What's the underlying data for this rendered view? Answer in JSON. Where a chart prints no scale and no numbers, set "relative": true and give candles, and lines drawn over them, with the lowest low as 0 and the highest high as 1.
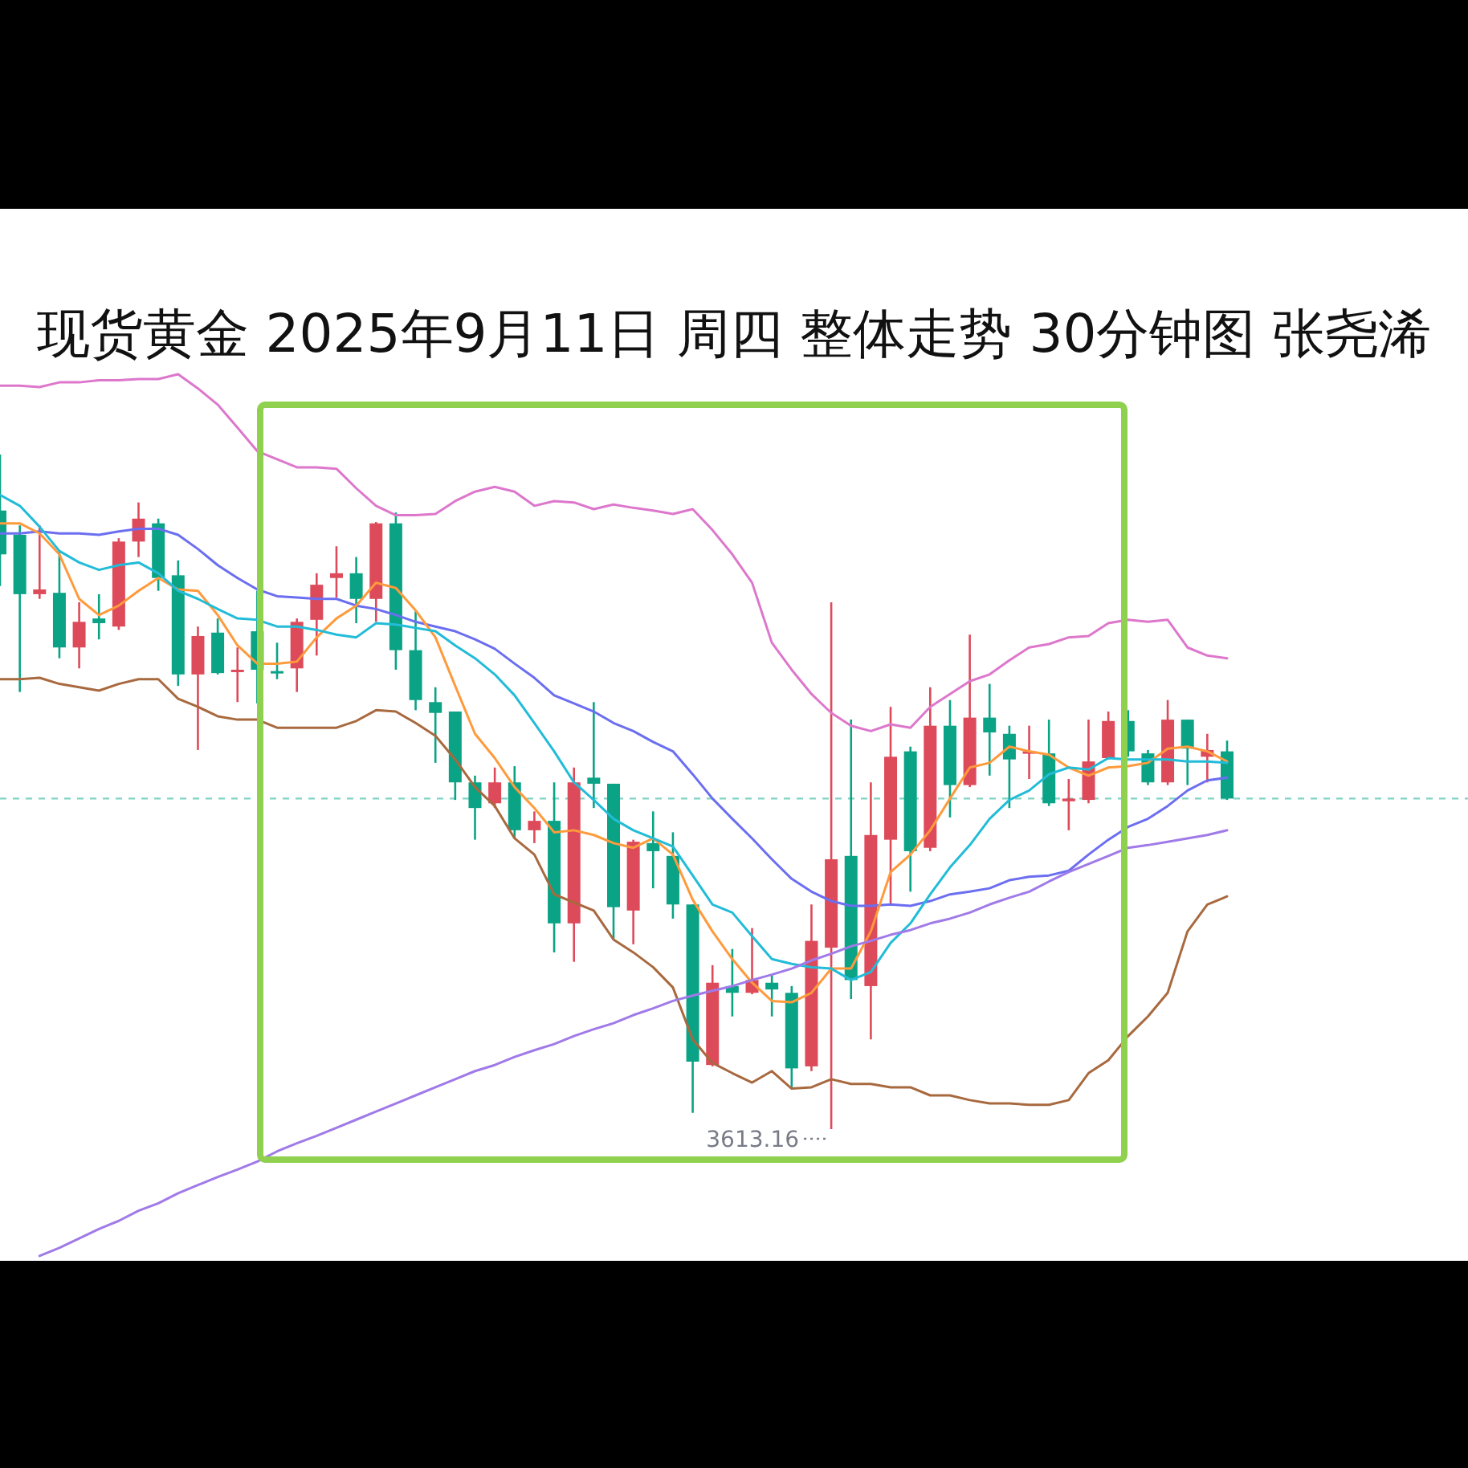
{
  "chart_data": {
    "type": "candlestick",
    "title": "现货黄金 2025年9月11日 周四 整体走势 30分钟图 张尧浠",
    "relative": true,
    "categories": [
      null,
      null,
      null,
      null,
      null,
      null,
      null,
      null,
      null,
      null,
      null,
      null,
      null,
      null,
      null,
      null,
      null,
      null,
      null,
      null,
      null,
      null,
      null,
      null,
      null,
      null,
      null,
      null,
      null,
      null,
      null,
      null,
      null,
      null,
      null,
      null,
      null,
      null,
      null,
      null,
      null,
      null,
      null,
      null,
      null,
      null,
      null,
      null,
      null,
      null,
      null,
      null,
      null,
      null,
      null,
      null,
      null,
      null,
      null,
      null,
      null,
      null,
      null
    ],
    "ohlc": [
      [
        0.852,
        1.0,
        0.805,
        0.917
      ],
      [
        0.793,
        0.895,
        0.648,
        0.881
      ],
      [
        0.8,
        0.895,
        0.786,
        0.793
      ],
      [
        0.714,
        0.857,
        0.698,
        0.795
      ],
      [
        0.752,
        0.781,
        0.683,
        0.714
      ],
      [
        0.75,
        0.793,
        0.726,
        0.757
      ],
      [
        0.871,
        0.876,
        0.74,
        0.745
      ],
      [
        0.905,
        0.929,
        0.848,
        0.871
      ],
      [
        0.817,
        0.905,
        0.798,
        0.898
      ],
      [
        0.674,
        0.843,
        0.657,
        0.821
      ],
      [
        0.731,
        0.745,
        0.562,
        0.674
      ],
      [
        0.676,
        0.757,
        0.674,
        0.736
      ],
      [
        0.681,
        0.714,
        0.633,
        0.679
      ],
      [
        0.681,
        0.798,
        0.631,
        0.738
      ],
      [
        0.676,
        0.721,
        0.667,
        0.679
      ],
      [
        0.752,
        0.757,
        0.648,
        0.683
      ],
      [
        0.807,
        0.824,
        0.702,
        0.755
      ],
      [
        0.824,
        0.864,
        0.788,
        0.817
      ],
      [
        0.786,
        0.848,
        0.75,
        0.824
      ],
      [
        0.898,
        0.9,
        0.752,
        0.786
      ],
      [
        0.71,
        0.914,
        0.681,
        0.898
      ],
      [
        0.636,
        0.769,
        0.621,
        0.71
      ],
      [
        0.617,
        0.655,
        0.543,
        0.633
      ],
      [
        0.514,
        0.619,
        0.488,
        0.619
      ],
      [
        0.476,
        0.524,
        0.429,
        0.514
      ],
      [
        0.514,
        0.536,
        0.476,
        0.483
      ],
      [
        0.443,
        0.538,
        0.431,
        0.514
      ],
      [
        0.457,
        0.471,
        0.424,
        0.443
      ],
      [
        0.305,
        0.514,
        0.262,
        0.457
      ],
      [
        0.514,
        0.536,
        0.248,
        0.305
      ],
      [
        0.512,
        0.633,
        0.476,
        0.521
      ],
      [
        0.329,
        0.512,
        0.281,
        0.512
      ],
      [
        0.426,
        0.429,
        0.274,
        0.324
      ],
      [
        0.412,
        0.471,
        0.357,
        0.424
      ],
      [
        0.333,
        0.44,
        0.312,
        0.405
      ],
      [
        0.1,
        0.333,
        0.024,
        0.333
      ],
      [
        0.217,
        0.243,
        0.093,
        0.095
      ],
      [
        0.202,
        0.267,
        0.167,
        0.212
      ],
      [
        0.221,
        0.298,
        0.2,
        0.202
      ],
      [
        0.207,
        0.229,
        0.167,
        0.217
      ],
      [
        0.09,
        0.212,
        0.062,
        0.202
      ],
      [
        0.279,
        0.333,
        0.086,
        0.093
      ],
      [
        0.4,
        0.781,
        0.0,
        0.269
      ],
      [
        0.221,
        0.607,
        0.193,
        0.405
      ],
      [
        0.436,
        0.514,
        0.133,
        0.212
      ],
      [
        0.552,
        0.626,
        0.333,
        0.429
      ],
      [
        0.412,
        0.567,
        0.352,
        0.56
      ],
      [
        0.598,
        0.655,
        0.412,
        0.417
      ],
      [
        0.51,
        0.636,
        0.462,
        0.598
      ],
      [
        0.61,
        0.733,
        0.507,
        0.51
      ],
      [
        0.588,
        0.66,
        0.524,
        0.61
      ],
      [
        0.548,
        0.598,
        0.476,
        0.586
      ],
      [
        0.56,
        0.598,
        0.519,
        0.557
      ],
      [
        0.483,
        0.607,
        0.479,
        0.557
      ],
      [
        0.49,
        0.519,
        0.443,
        0.486
      ],
      [
        0.545,
        0.607,
        0.483,
        0.488
      ],
      [
        0.605,
        0.619,
        0.548,
        0.55
      ],
      [
        0.56,
        0.621,
        0.552,
        0.605
      ],
      [
        0.514,
        0.562,
        0.51,
        0.557
      ],
      [
        0.607,
        0.636,
        0.51,
        0.514
      ],
      [
        0.564,
        0.607,
        0.51,
        0.607
      ],
      [
        0.562,
        0.586,
        0.514,
        0.552
      ],
      [
        0.49,
        0.576,
        0.488,
        0.56
      ]
    ],
    "colors": [
      "#0aa386",
      "#0aa386",
      "#dd4a5a",
      "#0aa386",
      "#dd4a5a",
      "#0aa386",
      "#dd4a5a",
      "#dd4a5a",
      "#0aa386",
      "#0aa386",
      "#dd4a5a",
      "#0aa386",
      "#dd4a5a",
      "#0aa386",
      "#0aa386",
      "#dd4a5a",
      "#dd4a5a",
      "#dd4a5a",
      "#0aa386",
      "#dd4a5a",
      "#0aa386",
      "#0aa386",
      "#0aa386",
      "#0aa386",
      "#0aa386",
      "#dd4a5a",
      "#0aa386",
      "#dd4a5a",
      "#0aa386",
      "#dd4a5a",
      "#0aa386",
      "#0aa386",
      "#dd4a5a",
      "#0aa386",
      "#0aa386",
      "#0aa386",
      "#dd4a5a",
      "#0aa386",
      "#dd4a5a",
      "#0aa386",
      "#0aa386",
      "#dd4a5a",
      "#dd4a5a",
      "#0aa386",
      "#dd4a5a",
      "#dd4a5a",
      "#0aa386",
      "#dd4a5a",
      "#0aa386",
      "#dd4a5a",
      "#0aa386",
      "#0aa386",
      "#dd4a5a",
      "#0aa386",
      "#dd4a5a",
      "#dd4a5a",
      "#dd4a5a",
      "#0aa386",
      "#0aa386",
      "#dd4a5a",
      "#0aa386",
      "#dd4a5a",
      "#0aa386"
    ],
    "series": [
      {
        "type": "line",
        "color": "#dd77cc",
        "values": [
          1.102,
          1.102,
          1.1,
          1.107,
          1.107,
          1.11,
          1.11,
          1.112,
          1.112,
          1.119,
          1.098,
          1.074,
          1.04,
          1.005,
          0.993,
          0.981,
          0.981,
          0.979,
          0.95,
          0.924,
          0.91,
          0.91,
          0.912,
          0.931,
          0.945,
          0.952,
          0.945,
          0.924,
          0.931,
          0.929,
          0.919,
          0.926,
          0.921,
          0.917,
          0.912,
          0.919,
          0.888,
          0.852,
          0.81,
          0.721,
          0.681,
          0.645,
          0.617,
          0.598,
          0.59,
          0.6,
          0.595,
          0.626,
          0.645,
          0.664,
          0.674,
          0.695,
          0.714,
          0.719,
          0.729,
          0.731,
          0.75,
          0.755,
          0.752,
          0.755,
          0.714,
          0.702,
          0.698
        ]
      },
      {
        "type": "line",
        "color": "#6b6ef0",
        "values": [
          0.883,
          0.883,
          0.886,
          0.883,
          0.883,
          0.881,
          0.886,
          0.89,
          0.89,
          0.881,
          0.86,
          0.836,
          0.817,
          0.8,
          0.79,
          0.788,
          0.786,
          0.786,
          0.776,
          0.771,
          0.762,
          0.752,
          0.745,
          0.738,
          0.726,
          0.712,
          0.69,
          0.669,
          0.643,
          0.631,
          0.619,
          0.602,
          0.59,
          0.574,
          0.56,
          0.526,
          0.49,
          0.46,
          0.431,
          0.4,
          0.371,
          0.352,
          0.338,
          0.331,
          0.331,
          0.333,
          0.331,
          0.338,
          0.348,
          0.352,
          0.357,
          0.369,
          0.374,
          0.376,
          0.383,
          0.407,
          0.429,
          0.448,
          0.46,
          0.479,
          0.502,
          0.517,
          0.521
        ]
      },
      {
        "type": "line",
        "color": "#a8693f",
        "values": [
          0.667,
          0.667,
          0.669,
          0.66,
          0.655,
          0.65,
          0.66,
          0.667,
          0.667,
          0.638,
          0.626,
          0.612,
          0.607,
          0.607,
          0.595,
          0.595,
          0.595,
          0.595,
          0.605,
          0.621,
          0.619,
          0.602,
          0.583,
          0.548,
          0.507,
          0.479,
          0.431,
          0.407,
          0.348,
          0.336,
          0.324,
          0.281,
          0.262,
          0.24,
          0.21,
          0.133,
          0.098,
          0.083,
          0.069,
          0.086,
          0.06,
          0.062,
          0.074,
          0.067,
          0.067,
          0.062,
          0.062,
          0.05,
          0.05,
          0.043,
          0.038,
          0.038,
          0.036,
          0.036,
          0.043,
          0.083,
          0.102,
          0.138,
          0.167,
          0.202,
          0.293,
          0.333,
          0.345
        ]
      },
      {
        "type": "line",
        "color": "#ff9a3c",
        "values": [
          0.898,
          0.898,
          0.883,
          0.852,
          0.786,
          0.762,
          0.776,
          0.798,
          0.817,
          0.8,
          0.798,
          0.762,
          0.717,
          0.69,
          0.69,
          0.693,
          0.729,
          0.757,
          0.776,
          0.81,
          0.802,
          0.769,
          0.729,
          0.657,
          0.586,
          0.55,
          0.507,
          0.476,
          0.44,
          0.443,
          0.436,
          0.424,
          0.417,
          0.431,
          0.407,
          0.34,
          0.293,
          0.252,
          0.217,
          0.19,
          0.188,
          0.202,
          0.238,
          0.238,
          0.293,
          0.381,
          0.407,
          0.443,
          0.49,
          0.536,
          0.543,
          0.567,
          0.56,
          0.555,
          0.536,
          0.524,
          0.536,
          0.538,
          0.543,
          0.564,
          0.567,
          0.56,
          0.545
        ]
      },
      {
        "type": "line",
        "color": "#22bcd8",
        "values": [
          0.94,
          0.924,
          0.893,
          0.857,
          0.84,
          0.829,
          0.836,
          0.84,
          0.824,
          0.798,
          0.786,
          0.771,
          0.757,
          0.755,
          0.745,
          0.745,
          0.74,
          0.733,
          0.729,
          0.75,
          0.748,
          0.743,
          0.738,
          0.717,
          0.698,
          0.674,
          0.643,
          0.602,
          0.56,
          0.514,
          0.488,
          0.46,
          0.443,
          0.431,
          0.419,
          0.376,
          0.333,
          0.321,
          0.286,
          0.252,
          0.245,
          0.24,
          0.238,
          0.221,
          0.233,
          0.276,
          0.305,
          0.348,
          0.388,
          0.421,
          0.46,
          0.488,
          0.502,
          0.526,
          0.536,
          0.533,
          0.55,
          0.548,
          0.548,
          0.548,
          0.545,
          0.545,
          0.543
        ]
      },
      {
        "type": "line",
        "color": "#a07ae8",
        "values": [
          null,
          null,
          -0.188,
          -0.176,
          -0.162,
          -0.148,
          -0.136,
          -0.121,
          -0.11,
          -0.095,
          -0.083,
          -0.071,
          -0.06,
          -0.048,
          -0.033,
          -0.021,
          -0.01,
          0.002,
          0.014,
          0.026,
          0.038,
          0.05,
          0.062,
          0.074,
          0.086,
          0.095,
          0.107,
          0.117,
          0.126,
          0.138,
          0.148,
          0.157,
          0.169,
          0.179,
          0.19,
          0.198,
          0.205,
          0.212,
          0.221,
          0.229,
          0.238,
          0.25,
          0.26,
          0.271,
          0.279,
          0.288,
          0.295,
          0.305,
          0.312,
          0.321,
          0.333,
          0.343,
          0.352,
          0.367,
          0.381,
          0.393,
          0.405,
          0.417,
          0.421,
          0.426,
          0.431,
          0.436,
          0.443
        ]
      }
    ],
    "ref_lines": [
      {
        "axis": "y",
        "value": 0.49,
        "color": "#7fd3c3",
        "line_style": "dashed"
      }
    ],
    "annotations": [
      "3613.16"
    ]
  }
}
